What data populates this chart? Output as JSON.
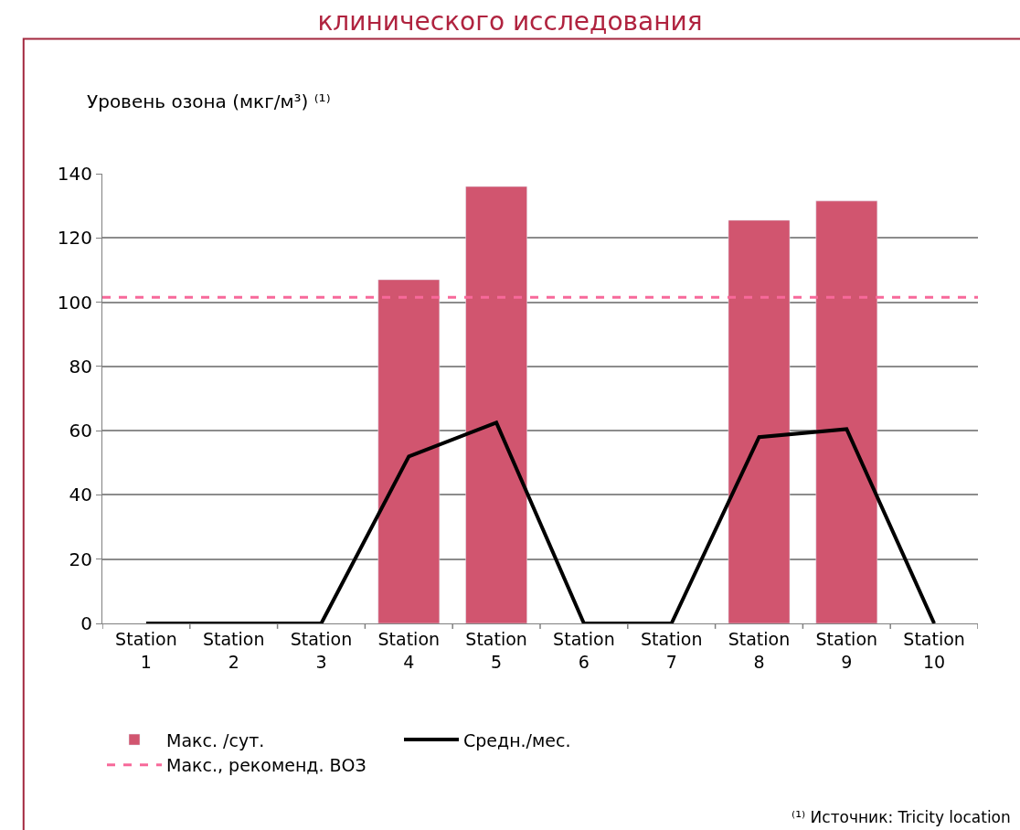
{
  "chart_data": {
    "type": "bar",
    "title": "клинического исследования",
    "ylabel": "Уровень озона (мкг/м³) ⁽¹⁾",
    "categories": [
      "Station 1",
      "Station 2",
      "Station 3",
      "Station 4",
      "Station 5",
      "Station 6",
      "Station 7",
      "Station 8",
      "Station 9",
      "Station 10"
    ],
    "series": [
      {
        "name": "Макс. /сут.",
        "color": "#d1556f",
        "values": [
          null,
          null,
          null,
          107,
          136,
          null,
          null,
          125.5,
          131.5,
          null
        ]
      },
      {
        "name": "Средн./мес.",
        "type": "line",
        "color": "#000000",
        "values": [
          0,
          0,
          0,
          52,
          62.5,
          0,
          0,
          58,
          60.5,
          0
        ]
      }
    ],
    "ref_lines": [
      {
        "axis": "y",
        "value": 101.5,
        "label": "Макс., рекоменд. ВОЗ",
        "color": "#f7699a",
        "line_style": "dashed"
      }
    ],
    "ylim": [
      0,
      140
    ],
    "yticks": [
      0,
      20,
      40,
      60,
      80,
      100,
      120,
      140
    ],
    "grid": "y",
    "legend": "bottom",
    "annotations": [
      "⁽¹⁾ Источник: Tricity location"
    ]
  }
}
